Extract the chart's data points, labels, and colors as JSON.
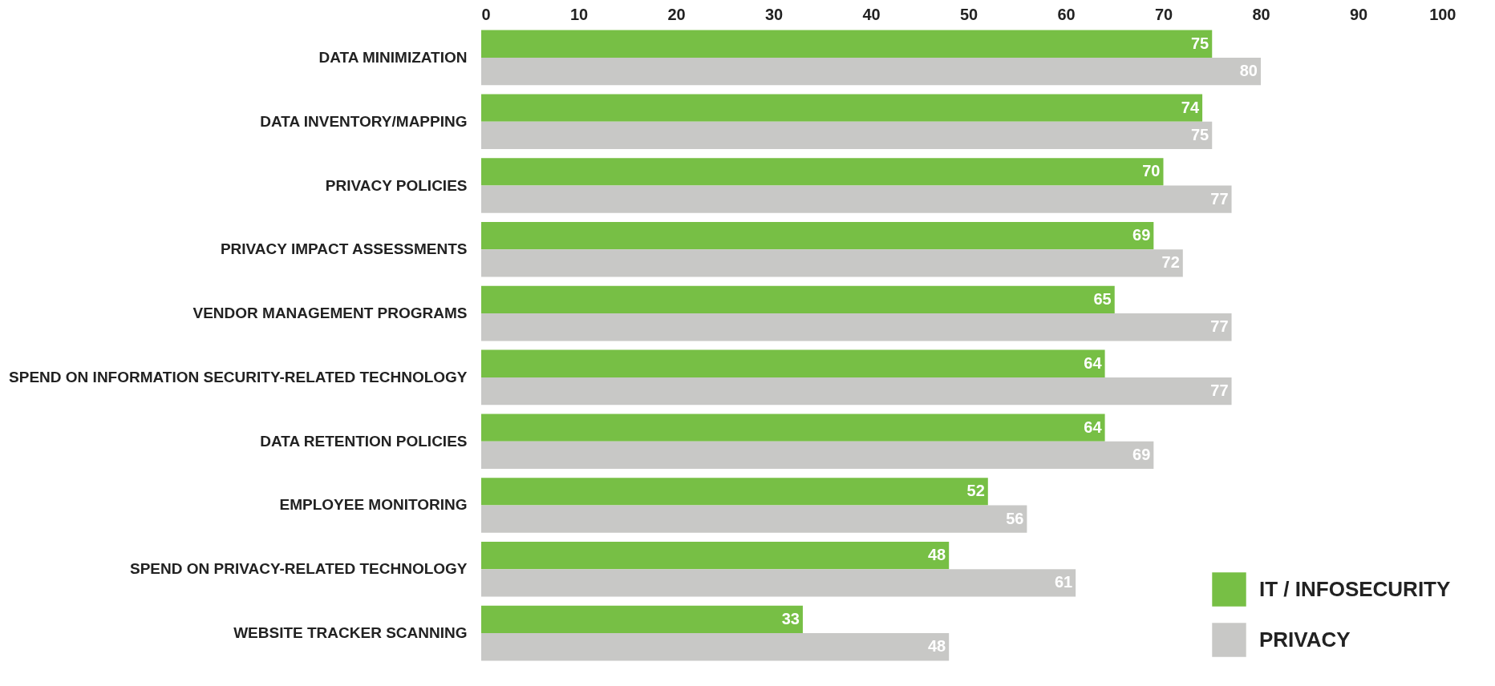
{
  "chart_data": {
    "type": "bar",
    "orientation": "horizontal",
    "categories": [
      "DATA MINIMIZATION",
      "DATA INVENTORY/MAPPING",
      "PRIVACY POLICIES",
      "PRIVACY IMPACT ASSESSMENTS",
      "VENDOR MANAGEMENT PROGRAMS",
      "SPEND ON INFORMATION SECURITY-RELATED TECHNOLOGY",
      "DATA RETENTION POLICIES",
      "EMPLOYEE MONITORING",
      "SPEND ON PRIVACY-RELATED TECHNOLOGY",
      "WEBSITE TRACKER SCANNING"
    ],
    "series": [
      {
        "name": "IT / INFOSECURITY",
        "color": "#77bf45",
        "values": [
          75,
          74,
          70,
          69,
          65,
          64,
          64,
          52,
          48,
          33
        ]
      },
      {
        "name": "PRIVACY",
        "color": "#c8c8c6",
        "values": [
          80,
          75,
          77,
          72,
          77,
          77,
          69,
          56,
          61,
          48
        ]
      }
    ],
    "xlim": [
      0,
      100
    ],
    "xticks": [
      0,
      10,
      20,
      30,
      40,
      50,
      60,
      70,
      80,
      90,
      100
    ],
    "data_labels": true,
    "legend": "bottom right"
  }
}
